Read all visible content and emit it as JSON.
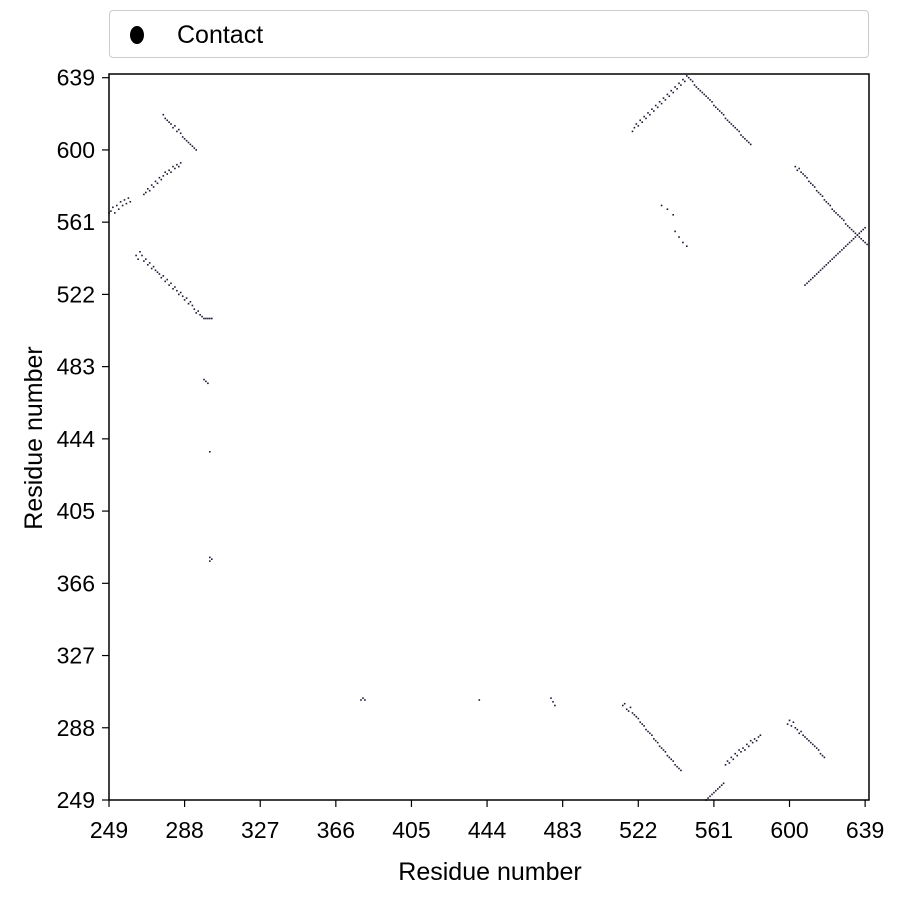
{
  "legend": {
    "label": "Contact",
    "marker_color": "#000000",
    "placement": "top"
  },
  "chart_data": {
    "type": "scatter",
    "title": "",
    "xlabel": "Residue number",
    "ylabel": "Residue number",
    "xlim": [
      249,
      641
    ],
    "ylim": [
      249,
      641
    ],
    "xticks": [
      249,
      288,
      327,
      366,
      405,
      444,
      483,
      522,
      561,
      600,
      639
    ],
    "yticks": [
      249,
      288,
      327,
      366,
      405,
      444,
      483,
      522,
      561,
      600,
      639
    ],
    "grid": false,
    "marker_color": "#1a1a33",
    "series": [
      {
        "name": "Contact",
        "points": [
          [
            249,
            566
          ],
          [
            250,
            567
          ],
          [
            251,
            569
          ],
          [
            252,
            566
          ],
          [
            253,
            570
          ],
          [
            254,
            568
          ],
          [
            255,
            572
          ],
          [
            256,
            570
          ],
          [
            257,
            573
          ],
          [
            258,
            571
          ],
          [
            259,
            574
          ],
          [
            260,
            572
          ],
          [
            263,
            543
          ],
          [
            264,
            541
          ],
          [
            265,
            545
          ],
          [
            266,
            543
          ],
          [
            267,
            540
          ],
          [
            268,
            541
          ],
          [
            269,
            538
          ],
          [
            270,
            539
          ],
          [
            271,
            536
          ],
          [
            272,
            537
          ],
          [
            273,
            535
          ],
          [
            274,
            534
          ],
          [
            275,
            533
          ],
          [
            276,
            531
          ],
          [
            277,
            532
          ],
          [
            278,
            529
          ],
          [
            279,
            530
          ],
          [
            280,
            527
          ],
          [
            281,
            528
          ],
          [
            282,
            525
          ],
          [
            283,
            526
          ],
          [
            284,
            524
          ],
          [
            285,
            522
          ],
          [
            286,
            523
          ],
          [
            287,
            521
          ],
          [
            288,
            519
          ],
          [
            289,
            520
          ],
          [
            290,
            517
          ],
          [
            291,
            518
          ],
          [
            292,
            516
          ],
          [
            293,
            514
          ],
          [
            294,
            512
          ],
          [
            295,
            513
          ],
          [
            296,
            511
          ],
          [
            297,
            510
          ],
          [
            298,
            509
          ],
          [
            299,
            509
          ],
          [
            300,
            509
          ],
          [
            301,
            509
          ],
          [
            302,
            509
          ],
          [
            267,
            576
          ],
          [
            268,
            577
          ],
          [
            269,
            579
          ],
          [
            270,
            578
          ],
          [
            271,
            581
          ],
          [
            272,
            580
          ],
          [
            273,
            583
          ],
          [
            274,
            582
          ],
          [
            275,
            585
          ],
          [
            276,
            584
          ],
          [
            277,
            586
          ],
          [
            278,
            588
          ],
          [
            279,
            587
          ],
          [
            280,
            589
          ],
          [
            281,
            588
          ],
          [
            282,
            591
          ],
          [
            283,
            590
          ],
          [
            284,
            592
          ],
          [
            285,
            591
          ],
          [
            286,
            593
          ],
          [
            277,
            619
          ],
          [
            278,
            617
          ],
          [
            279,
            616
          ],
          [
            280,
            615
          ],
          [
            281,
            614
          ],
          [
            282,
            612
          ],
          [
            283,
            613
          ],
          [
            284,
            610
          ],
          [
            285,
            611
          ],
          [
            286,
            609
          ],
          [
            287,
            607
          ],
          [
            288,
            606
          ],
          [
            289,
            605
          ],
          [
            290,
            604
          ],
          [
            291,
            603
          ],
          [
            292,
            602
          ],
          [
            293,
            601
          ],
          [
            294,
            600
          ],
          [
            298,
            476
          ],
          [
            299,
            475
          ],
          [
            300,
            474
          ],
          [
            301,
            437
          ],
          [
            301,
            380
          ],
          [
            302,
            379
          ],
          [
            301,
            378
          ],
          [
            379,
            303
          ],
          [
            380,
            304
          ],
          [
            381,
            303
          ],
          [
            440,
            303
          ],
          [
            477,
            304
          ],
          [
            478,
            302
          ],
          [
            479,
            300
          ],
          [
            514,
            300
          ],
          [
            515,
            301
          ],
          [
            516,
            298
          ],
          [
            517,
            297
          ],
          [
            518,
            299
          ],
          [
            519,
            296
          ],
          [
            520,
            295
          ],
          [
            521,
            294
          ],
          [
            522,
            293
          ],
          [
            523,
            291
          ],
          [
            524,
            290
          ],
          [
            525,
            289
          ],
          [
            526,
            287
          ],
          [
            527,
            286
          ],
          [
            528,
            285
          ],
          [
            529,
            284
          ],
          [
            530,
            282
          ],
          [
            531,
            281
          ],
          [
            532,
            280
          ],
          [
            533,
            278
          ],
          [
            534,
            277
          ],
          [
            535,
            276
          ],
          [
            536,
            275
          ],
          [
            537,
            273
          ],
          [
            538,
            272
          ],
          [
            539,
            271
          ],
          [
            540,
            270
          ],
          [
            541,
            268
          ],
          [
            542,
            267
          ],
          [
            543,
            266
          ],
          [
            544,
            265
          ],
          [
            557,
            249
          ],
          [
            558,
            250
          ],
          [
            559,
            251
          ],
          [
            560,
            252
          ],
          [
            561,
            253
          ],
          [
            562,
            254
          ],
          [
            563,
            255
          ],
          [
            564,
            256
          ],
          [
            565,
            257
          ],
          [
            566,
            258
          ],
          [
            567,
            268
          ],
          [
            568,
            270
          ],
          [
            569,
            269
          ],
          [
            570,
            272
          ],
          [
            571,
            271
          ],
          [
            572,
            274
          ],
          [
            573,
            273
          ],
          [
            574,
            276
          ],
          [
            575,
            275
          ],
          [
            576,
            277
          ],
          [
            577,
            276
          ],
          [
            578,
            279
          ],
          [
            579,
            278
          ],
          [
            580,
            281
          ],
          [
            581,
            280
          ],
          [
            582,
            282
          ],
          [
            583,
            281
          ],
          [
            584,
            283
          ],
          [
            585,
            284
          ],
          [
            599,
            290
          ],
          [
            600,
            292
          ],
          [
            601,
            289
          ],
          [
            602,
            291
          ],
          [
            603,
            288
          ],
          [
            604,
            287
          ],
          [
            605,
            285
          ],
          [
            606,
            286
          ],
          [
            607,
            284
          ],
          [
            608,
            283
          ],
          [
            609,
            282
          ],
          [
            610,
            281
          ],
          [
            611,
            280
          ],
          [
            612,
            279
          ],
          [
            613,
            278
          ],
          [
            614,
            277
          ],
          [
            615,
            276
          ],
          [
            616,
            274
          ],
          [
            617,
            273
          ],
          [
            618,
            272
          ],
          [
            519,
            610
          ],
          [
            520,
            612
          ],
          [
            521,
            614
          ],
          [
            522,
            613
          ],
          [
            523,
            616
          ],
          [
            524,
            615
          ],
          [
            525,
            618
          ],
          [
            526,
            617
          ],
          [
            527,
            620
          ],
          [
            528,
            619
          ],
          [
            529,
            622
          ],
          [
            530,
            621
          ],
          [
            531,
            624
          ],
          [
            532,
            623
          ],
          [
            533,
            626
          ],
          [
            534,
            625
          ],
          [
            535,
            628
          ],
          [
            536,
            627
          ],
          [
            537,
            630
          ],
          [
            538,
            629
          ],
          [
            539,
            632
          ],
          [
            540,
            631
          ],
          [
            541,
            634
          ],
          [
            542,
            633
          ],
          [
            543,
            636
          ],
          [
            544,
            635
          ],
          [
            545,
            638
          ],
          [
            546,
            637
          ],
          [
            547,
            640
          ],
          [
            548,
            639
          ],
          [
            549,
            638
          ],
          [
            550,
            637
          ],
          [
            551,
            635
          ],
          [
            552,
            634
          ],
          [
            553,
            633
          ],
          [
            554,
            632
          ],
          [
            555,
            631
          ],
          [
            556,
            630
          ],
          [
            557,
            629
          ],
          [
            558,
            628
          ],
          [
            559,
            627
          ],
          [
            560,
            626
          ],
          [
            561,
            624
          ],
          [
            562,
            623
          ],
          [
            563,
            622
          ],
          [
            564,
            621
          ],
          [
            565,
            620
          ],
          [
            566,
            619
          ],
          [
            567,
            617
          ],
          [
            568,
            616
          ],
          [
            569,
            615
          ],
          [
            570,
            614
          ],
          [
            571,
            613
          ],
          [
            572,
            612
          ],
          [
            573,
            611
          ],
          [
            574,
            610
          ],
          [
            575,
            608
          ],
          [
            576,
            607
          ],
          [
            577,
            606
          ],
          [
            578,
            605
          ],
          [
            579,
            604
          ],
          [
            580,
            603
          ],
          [
            534,
            570
          ],
          [
            537,
            568
          ],
          [
            540,
            565
          ],
          [
            541,
            556
          ],
          [
            543,
            553
          ],
          [
            545,
            550
          ],
          [
            547,
            548
          ],
          [
            603,
            591
          ],
          [
            604,
            589
          ],
          [
            605,
            590
          ],
          [
            606,
            588
          ],
          [
            607,
            587
          ],
          [
            608,
            586
          ],
          [
            609,
            585
          ],
          [
            610,
            583
          ],
          [
            611,
            582
          ],
          [
            612,
            581
          ],
          [
            613,
            580
          ],
          [
            614,
            578
          ],
          [
            615,
            577
          ],
          [
            616,
            576
          ],
          [
            617,
            575
          ],
          [
            618,
            573
          ],
          [
            619,
            572
          ],
          [
            620,
            571
          ],
          [
            621,
            570
          ],
          [
            622,
            568
          ],
          [
            623,
            567
          ],
          [
            624,
            566
          ],
          [
            625,
            565
          ],
          [
            626,
            564
          ],
          [
            627,
            563
          ],
          [
            628,
            562
          ],
          [
            629,
            560
          ],
          [
            630,
            559
          ],
          [
            631,
            558
          ],
          [
            632,
            557
          ],
          [
            633,
            556
          ],
          [
            634,
            555
          ],
          [
            635,
            554
          ],
          [
            636,
            553
          ],
          [
            637,
            552
          ],
          [
            638,
            551
          ],
          [
            639,
            550
          ],
          [
            640,
            549
          ],
          [
            608,
            527
          ],
          [
            609,
            528
          ],
          [
            610,
            529
          ],
          [
            611,
            530
          ],
          [
            612,
            531
          ],
          [
            613,
            532
          ],
          [
            614,
            533
          ],
          [
            615,
            534
          ],
          [
            616,
            535
          ],
          [
            617,
            536
          ],
          [
            618,
            537
          ],
          [
            619,
            538
          ],
          [
            620,
            539
          ],
          [
            621,
            540
          ],
          [
            622,
            541
          ],
          [
            623,
            542
          ],
          [
            624,
            543
          ],
          [
            625,
            544
          ],
          [
            626,
            545
          ],
          [
            627,
            546
          ],
          [
            628,
            547
          ],
          [
            629,
            548
          ],
          [
            630,
            549
          ],
          [
            631,
            550
          ],
          [
            632,
            551
          ],
          [
            633,
            552
          ],
          [
            634,
            553
          ],
          [
            635,
            554
          ],
          [
            636,
            555
          ],
          [
            637,
            556
          ],
          [
            638,
            557
          ],
          [
            639,
            558
          ]
        ]
      }
    ]
  }
}
